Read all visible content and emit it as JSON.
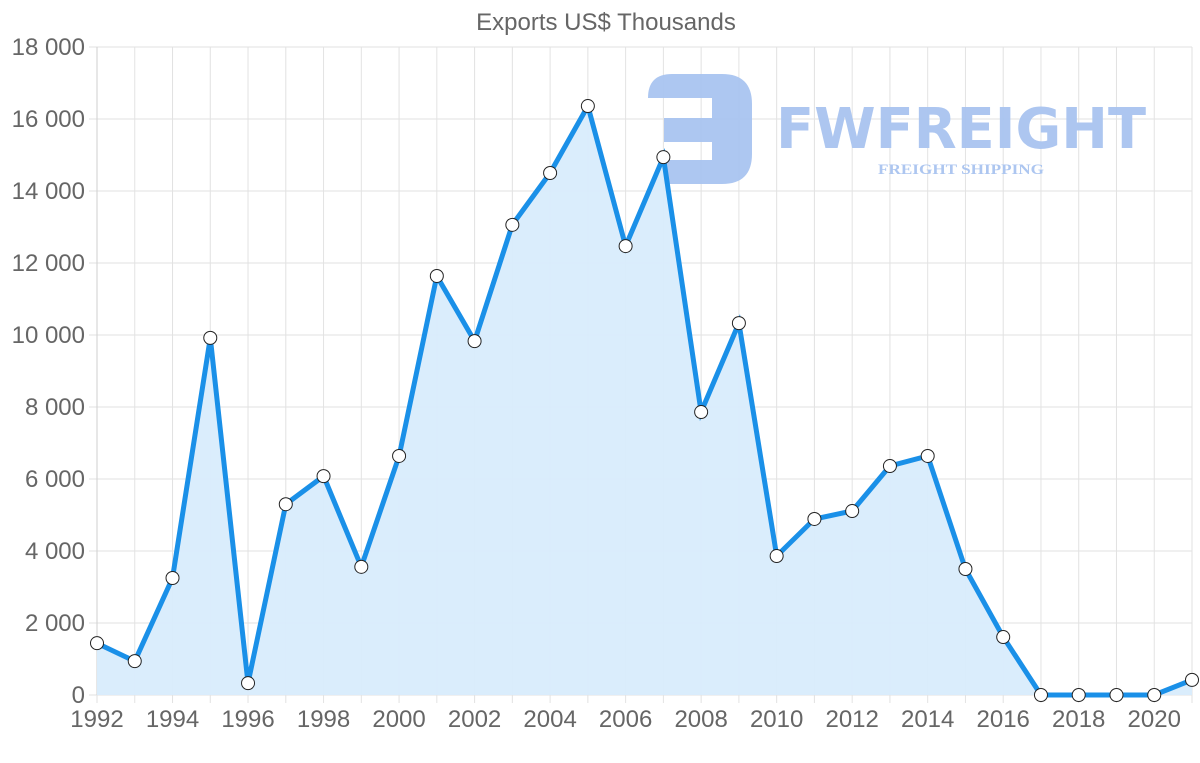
{
  "chart_data": {
    "type": "area",
    "title": "Exports US$ Thousands",
    "xlabel": "",
    "ylabel": "",
    "x": [
      1992,
      1993,
      1994,
      1995,
      1996,
      1997,
      1998,
      1999,
      2000,
      2001,
      2002,
      2003,
      2004,
      2005,
      2006,
      2007,
      2008,
      2009,
      2010,
      2011,
      2012,
      2013,
      2014,
      2015,
      2016,
      2017,
      2018,
      2019,
      2020,
      2021
    ],
    "series": [
      {
        "name": "Exports US$ Thousands",
        "values": [
          1440,
          940,
          3250,
          9920,
          330,
          5300,
          6080,
          3560,
          6640,
          11640,
          9830,
          13060,
          14500,
          16360,
          12470,
          14940,
          7860,
          10330,
          3860,
          4890,
          5110,
          6360,
          6640,
          3500,
          1610,
          0,
          0,
          0,
          0,
          420
        ],
        "color": "#1a90e8",
        "fill": "#d8ecfc"
      }
    ],
    "ylim": [
      0,
      18000
    ],
    "yticks": [
      0,
      2000,
      4000,
      6000,
      8000,
      10000,
      12000,
      14000,
      16000,
      18000
    ],
    "ytick_labels": [
      "0",
      "2 000",
      "4 000",
      "6 000",
      "8 000",
      "10 000",
      "12 000",
      "14 000",
      "16 000",
      "18 000"
    ],
    "xtick_labels": [
      "1992",
      "1994",
      "1996",
      "1998",
      "2000",
      "2002",
      "2004",
      "2006",
      "2008",
      "2010",
      "2012",
      "2014",
      "2016",
      "2018",
      "2020"
    ],
    "grid": true,
    "legend": "none"
  },
  "watermark": {
    "brand": "FWFREIGHT",
    "tagline": "FREIGHT SHIPPING"
  }
}
